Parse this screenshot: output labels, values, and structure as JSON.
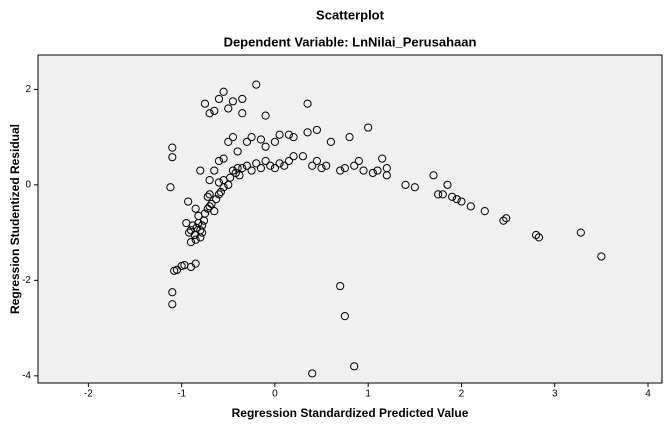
{
  "chart_data": {
    "type": "scatter",
    "title": "Scatterplot",
    "subtitle": "Dependent Variable: LnNilai_Perusahaan",
    "x_label": "Regression Standardized Predicted Value",
    "y_label": "Regression Studentized Residual",
    "xlim": [
      -2.54,
      4.15
    ],
    "xticks": [
      -2,
      -1,
      0,
      1,
      2,
      3,
      4
    ],
    "ylim": [
      -4.15,
      2.72
    ],
    "yticks": [
      2,
      0,
      -2,
      -4
    ],
    "color": "#000000",
    "x": [
      -1.1,
      -1.1,
      -1.08,
      -1.05,
      -1.0,
      -0.97,
      -0.9,
      -0.85,
      -1.1,
      -1.1,
      -1.12,
      -0.92,
      -0.9,
      -0.88,
      -0.86,
      -0.84,
      -0.82,
      -0.8,
      -0.78,
      -0.76,
      -0.85,
      -0.8,
      -0.9,
      -0.95,
      -0.93,
      -0.75,
      -0.72,
      -0.7,
      -0.68,
      -0.65,
      -0.63,
      -0.6,
      -0.58,
      -0.55,
      -0.78,
      -0.82,
      -0.85,
      -0.72,
      -0.7,
      -0.6,
      -0.55,
      -0.5,
      -0.48,
      -0.45,
      -0.42,
      -0.4,
      -0.38,
      -0.35,
      -0.3,
      -0.25,
      -0.2,
      -0.15,
      -0.1,
      -0.05,
      0.0,
      0.05,
      0.1,
      0.15,
      0.2,
      -0.65,
      -0.6,
      -0.55,
      -0.5,
      -0.45,
      -0.4,
      -0.3,
      -0.25,
      -0.15,
      -0.1,
      0.0,
      0.05,
      0.2,
      0.15,
      -0.75,
      -0.7,
      -0.65,
      -0.6,
      -0.55,
      -0.5,
      -0.45,
      -0.35,
      -0.35,
      -0.2,
      -0.1,
      0.35,
      -0.8,
      -0.7,
      0.3,
      0.35,
      0.45,
      0.4,
      0.45,
      0.5,
      0.55,
      0.6,
      0.7,
      0.75,
      0.8,
      0.85,
      0.9,
      0.95,
      1.0,
      1.05,
      1.1,
      1.15,
      1.2,
      1.2,
      1.4,
      1.5,
      1.7,
      1.75,
      1.8,
      1.85,
      1.9,
      1.95,
      2.0,
      2.1,
      2.25,
      2.45,
      2.48,
      2.8,
      2.83,
      3.28,
      3.5,
      0.7,
      0.75,
      0.85,
      0.4
    ],
    "values": [
      -2.5,
      -2.25,
      -1.8,
      -1.78,
      -1.7,
      -1.68,
      -1.72,
      -1.65,
      0.78,
      0.58,
      -0.05,
      -1.0,
      -0.95,
      -0.85,
      -1.05,
      -0.9,
      -0.8,
      -0.95,
      -0.85,
      -0.75,
      -1.15,
      -1.1,
      -1.2,
      -0.8,
      -0.35,
      -0.6,
      -0.5,
      -0.45,
      -0.4,
      -0.55,
      -0.3,
      -0.2,
      -0.15,
      -0.05,
      -1.0,
      -0.65,
      -0.5,
      -0.25,
      -0.2,
      0.05,
      0.1,
      0.0,
      0.15,
      0.3,
      0.25,
      0.35,
      0.2,
      0.35,
      0.4,
      0.3,
      0.45,
      0.35,
      0.5,
      0.4,
      0.35,
      0.45,
      0.4,
      0.5,
      0.6,
      0.3,
      0.5,
      0.55,
      0.9,
      1.0,
      0.7,
      0.9,
      1.0,
      0.95,
      0.8,
      0.9,
      1.05,
      1.0,
      1.05,
      1.7,
      1.5,
      1.55,
      1.8,
      1.95,
      1.6,
      1.75,
      1.8,
      1.5,
      2.1,
      1.45,
      1.7,
      0.3,
      0.1,
      0.6,
      1.1,
      1.15,
      0.4,
      0.5,
      0.35,
      0.4,
      0.9,
      0.3,
      0.35,
      1.0,
      0.4,
      0.5,
      0.3,
      1.2,
      0.25,
      0.3,
      0.55,
      0.2,
      0.35,
      0.0,
      -0.05,
      0.2,
      -0.2,
      -0.2,
      0.0,
      -0.25,
      -0.3,
      -0.35,
      -0.45,
      -0.55,
      -0.75,
      -0.7,
      -1.05,
      -1.1,
      -1.0,
      -1.5,
      -2.12,
      -2.75,
      -3.8,
      -3.95
    ]
  }
}
